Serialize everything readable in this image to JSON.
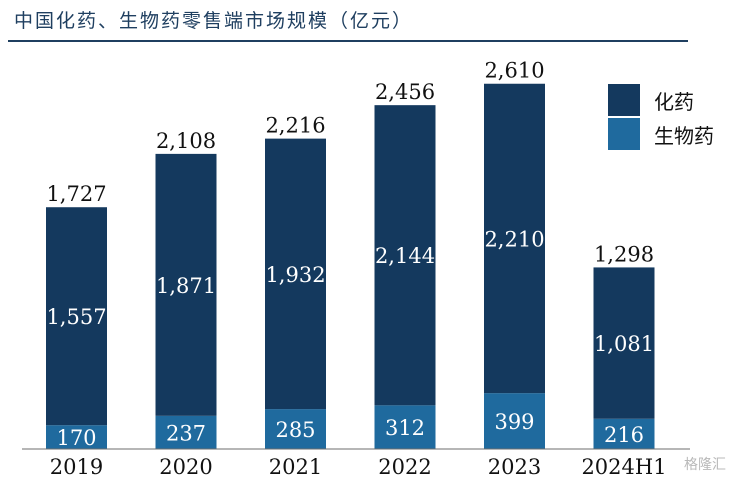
{
  "title": "中国化药、生物药零售端市场规模（亿元）",
  "watermark": "格隆汇",
  "colors": {
    "chemical": "#14395e",
    "bio": "#1f6a9e",
    "axis": "#6d6d6d"
  },
  "chart_data": {
    "type": "bar",
    "stacked": true,
    "categories": [
      "2019",
      "2020",
      "2021",
      "2022",
      "2023",
      "2024H1"
    ],
    "series": [
      {
        "name": "生物药",
        "values": [
          170,
          237,
          285,
          312,
          399,
          216
        ]
      },
      {
        "name": "化药",
        "values": [
          1557,
          1871,
          1932,
          2144,
          2210,
          1081
        ]
      }
    ],
    "totals": [
      "1,727",
      "2,108",
      "2,216",
      "2,456",
      "2,610",
      "1,298"
    ],
    "value_labels": {
      "生物药": [
        "170",
        "237",
        "285",
        "312",
        "399",
        "216"
      ],
      "化药": [
        "1,557",
        "1,871",
        "1,932",
        "2,144",
        "2,210",
        "1,081"
      ]
    },
    "legend": [
      "化药",
      "生物药"
    ],
    "legend_position": "right",
    "ylim": [
      0,
      2800
    ],
    "grid": false
  }
}
